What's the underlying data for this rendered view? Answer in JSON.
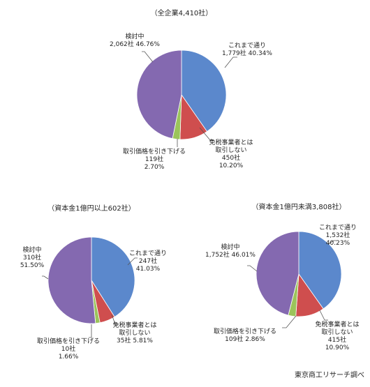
{
  "source_note": "東京商工リサーチ調べ",
  "colors": {
    "blue": "#5B88CC",
    "red": "#CF4E4E",
    "green": "#9BC45A",
    "purple": "#8469B0"
  },
  "chart_data": [
    {
      "type": "pie",
      "title": "（全企業4,410社）",
      "series": [
        {
          "name": "これまで通り",
          "value": 40.34,
          "color": "#5B88CC",
          "label_lines": [
            "これまで通り",
            "1,779社 40.34%"
          ]
        },
        {
          "name": "免税事業者とは取引しない",
          "value": 10.2,
          "color": "#CF4E4E",
          "label_lines": [
            "免税事業者とは",
            "取引しない",
            "450社",
            "10.20%"
          ]
        },
        {
          "name": "取引価格を引き下げる",
          "value": 2.7,
          "color": "#9BC45A",
          "label_lines": [
            "取引価格を引き下げる",
            "119社",
            "2.70%"
          ]
        },
        {
          "name": "検討中",
          "value": 46.76,
          "color": "#8469B0",
          "label_lines": [
            "検討中",
            "2,062社 46.76%"
          ]
        }
      ]
    },
    {
      "type": "pie",
      "title": "（資本金1億円以上602社）",
      "series": [
        {
          "name": "これまで通り",
          "value": 41.03,
          "color": "#5B88CC",
          "label_lines": [
            "これまで通り",
            "247社",
            "41.03%"
          ]
        },
        {
          "name": "免税事業者とは取引しない",
          "value": 5.81,
          "color": "#CF4E4E",
          "label_lines": [
            "免税事業者とは",
            "取引しない",
            "35社 5.81%"
          ]
        },
        {
          "name": "取引価格を引き下げる",
          "value": 1.66,
          "color": "#9BC45A",
          "label_lines": [
            "取引価格を引き下げる",
            "10社",
            "1.66%"
          ]
        },
        {
          "name": "検討中",
          "value": 51.5,
          "color": "#8469B0",
          "label_lines": [
            "検討中",
            "310社",
            "51.50%"
          ]
        }
      ]
    },
    {
      "type": "pie",
      "title": "（資本金1億円未満3,808社）",
      "series": [
        {
          "name": "これまで通り",
          "value": 40.23,
          "color": "#5B88CC",
          "label_lines": [
            "これまで通り",
            "1,532社",
            "40.23%"
          ]
        },
        {
          "name": "免税事業者とは取引しない",
          "value": 10.9,
          "color": "#CF4E4E",
          "label_lines": [
            "免税事業者とは",
            "取引しない",
            "415社",
            "10.90%"
          ]
        },
        {
          "name": "取引価格を引き下げる",
          "value": 2.86,
          "color": "#9BC45A",
          "label_lines": [
            "取引価格を引き下げる",
            "109社 2.86%"
          ]
        },
        {
          "name": "検討中",
          "value": 46.01,
          "color": "#8469B0",
          "label_lines": [
            "検討中",
            "1,752社 46.01%"
          ]
        }
      ]
    }
  ]
}
